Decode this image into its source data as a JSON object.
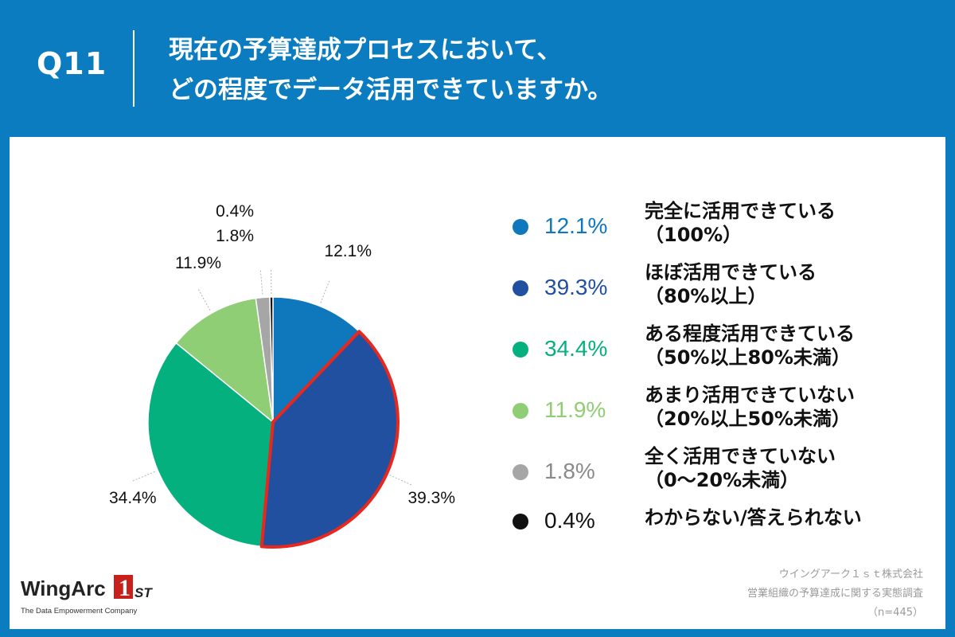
{
  "header": {
    "qnum": "Q11",
    "title_line1": "現在の予算達成プロセスにおいて、",
    "title_line2": "どの程度でデータ活用できていますか。"
  },
  "colors": {
    "header_bg": "#0a7cbf",
    "highlight": "#e8271d"
  },
  "chart_data": {
    "type": "pie",
    "title": "",
    "unit": "%",
    "highlighted_slice": "ほぼ活用できている",
    "slices": [
      {
        "label": "完全に活用できている（100%）",
        "value": 12.1,
        "display": "12.1%",
        "color": "#0f78bc"
      },
      {
        "label": "ほぼ活用できている（80%以上）",
        "value": 39.3,
        "display": "39.3%",
        "color": "#2150a0"
      },
      {
        "label": "ある程度活用できている（50%以上80%未満）",
        "value": 34.4,
        "display": "34.4%",
        "color": "#05b07f"
      },
      {
        "label": "あまり活用できていない（20%以上50%未満）",
        "value": 11.9,
        "display": "11.9%",
        "color": "#8fce75"
      },
      {
        "label": "全く活用できていない（0〜20%未満）",
        "value": 1.8,
        "display": "1.8%",
        "color": "#a6a6a6"
      },
      {
        "label": "わからない/答えられない",
        "value": 0.4,
        "display": "0.4%",
        "color": "#111111"
      }
    ]
  },
  "legend": [
    {
      "pct": "12.1%",
      "line1": "完全に活用できている",
      "line2": "（100%）",
      "color": "#0f78bc"
    },
    {
      "pct": "39.3%",
      "line1": "ほぼ活用できている",
      "line2": "（80%以上）",
      "color": "#2150a0"
    },
    {
      "pct": "34.4%",
      "line1": "ある程度活用できている",
      "line2": "（50%以上80%未満）",
      "color": "#05b07f"
    },
    {
      "pct": "11.9%",
      "line1": "あまり活用できていない",
      "line2": "（20%以上50%未満）",
      "color": "#8fce75"
    },
    {
      "pct": "1.8%",
      "line1": "全く活用できていない",
      "line2": "（0〜20%未満）",
      "color": "#a6a6a6"
    },
    {
      "pct": "0.4%",
      "line1": "わからない/答えられない",
      "line2": "",
      "color": "#111111"
    }
  ],
  "source": {
    "line1": "ウイングアーク１ｓｔ株式会社",
    "line2": "営業組織の予算達成に関する実態調査",
    "line3": "（n=445）"
  },
  "logo": {
    "word": "WingArc",
    "mark": "1ST",
    "tagline": "The Data Empowerment Company"
  }
}
